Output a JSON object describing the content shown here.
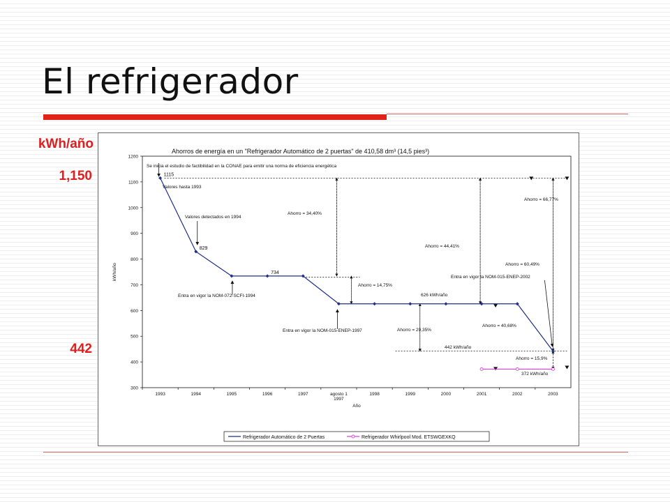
{
  "slide": {
    "title": "El refrigerador",
    "left_labels": {
      "unit": "kWh/año",
      "top_value": "1,150",
      "bottom_value": "442"
    },
    "colors": {
      "title_rule": "#e2231a",
      "side_labels": "#dd1f1f",
      "series_main": "#1f2f8a",
      "series_whirlpool": "#e040e0"
    }
  },
  "chart_data": {
    "type": "line",
    "title": "Ahorros de energía en un \"Refrigerador Automático de 2 puertas\" de 410,58 dm³ (14,5 pies³)",
    "xlabel": "Año",
    "ylabel": "kWh/año",
    "ylim": [
      300,
      1200
    ],
    "yticks": [
      300,
      400,
      500,
      600,
      700,
      800,
      900,
      1000,
      1100,
      1200
    ],
    "xticks": [
      "1993",
      "1994",
      "1995",
      "1996",
      "1997",
      "agosto 1\n1997",
      "1998",
      "1999",
      "2000",
      "2001",
      "2002",
      "2003"
    ],
    "legend_position": "bottom",
    "grid": false,
    "series": [
      {
        "name": "Refrigerador Automático de 2 Puertas",
        "points": [
          [
            0,
            1115
          ],
          [
            1,
            829
          ],
          [
            2,
            734
          ],
          [
            3,
            734
          ],
          [
            4,
            734
          ],
          [
            5,
            626
          ],
          [
            6,
            626
          ],
          [
            7,
            626
          ],
          [
            8,
            626
          ],
          [
            9,
            626
          ],
          [
            10,
            626
          ],
          [
            11,
            442
          ]
        ]
      },
      {
        "name": "Refrigerador Whirlpool Mod. ETSWGEXKQ",
        "points": [
          [
            9,
            372
          ],
          [
            10,
            372
          ],
          [
            11,
            372
          ]
        ]
      }
    ],
    "point_labels": [
      {
        "text": "1115",
        "x": 0,
        "y": 1115
      },
      {
        "text": "829",
        "x": 1,
        "y": 829
      },
      {
        "text": "734",
        "x": 3,
        "y": 734
      }
    ],
    "annotations": [
      "Se inicia el estudio de factibilidad en la CONAE para emitir una norma de eficiencia energética",
      "Valores hasta 1993",
      "Valores detectados en 1994",
      "Entra en vigor la NOM-072-SCFI-1994",
      "Entra en vigor la NOM-015-ENEP-1997",
      "Entra en vigor la NOM-015-ENEP-2002",
      "Ahorro = 34,40%",
      "Ahorro = 14,75%",
      "Ahorro = 44,41%",
      "Ahorro = 29,35%",
      "Ahorro = 60,49%",
      "Ahorro = 40,68%",
      "Ahorro = 66,77%",
      "Ahorro = 15,9%",
      "626 kWh/año",
      "442 kWh/año",
      "372 kWh/año"
    ]
  }
}
